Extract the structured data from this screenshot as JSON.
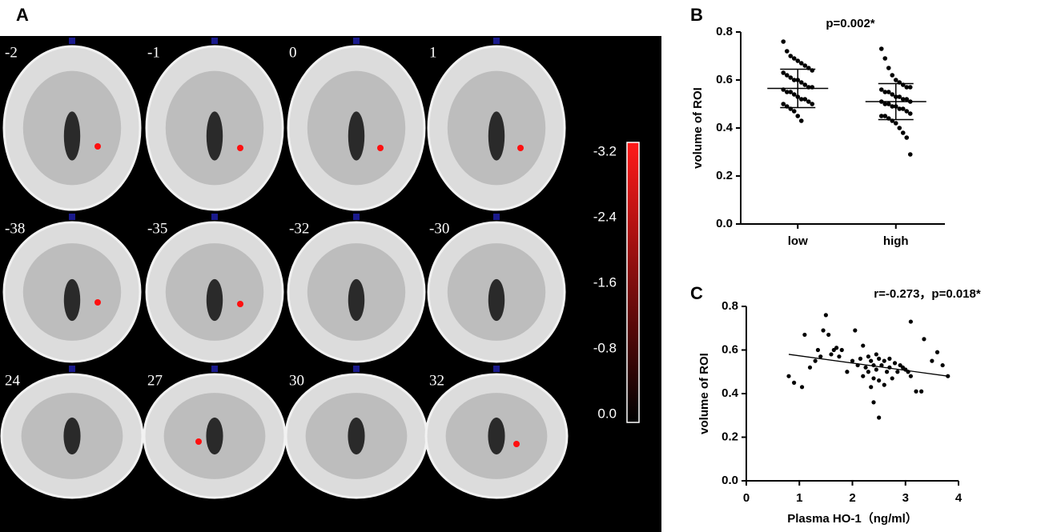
{
  "brain_panel": {
    "panel_label": "A",
    "slices": [
      [
        "-2",
        "-1",
        "0",
        "1"
      ],
      [
        "-38",
        "-35",
        "-32",
        "-30"
      ],
      [
        "24",
        "27",
        "30",
        "32"
      ]
    ],
    "colorbar": {
      "lim": [
        -3.2,
        0
      ],
      "ticks": [
        -3.2,
        -2.4,
        -1.6,
        -0.8,
        {
          "value": 0,
          "label": "0.0"
        }
      ]
    }
  },
  "chart_data": [
    {
      "type": "strip",
      "panel_label": "B",
      "annotation": "p=0.002*",
      "ylabel": "volume of ROI",
      "categories": [
        "low",
        "high"
      ],
      "color": "#000000",
      "values": [
        [
          0.76,
          0.72,
          0.7,
          0.69,
          0.68,
          0.67,
          0.66,
          0.65,
          0.64,
          0.63,
          0.62,
          0.61,
          0.6,
          0.6,
          0.59,
          0.58,
          0.57,
          0.57,
          0.56,
          0.55,
          0.55,
          0.54,
          0.53,
          0.52,
          0.52,
          0.51,
          0.5,
          0.5,
          0.49,
          0.48,
          0.47,
          0.45,
          0.43
        ],
        [
          0.73,
          0.69,
          0.65,
          0.62,
          0.6,
          0.59,
          0.58,
          0.57,
          0.57,
          0.56,
          0.55,
          0.55,
          0.54,
          0.53,
          0.53,
          0.52,
          0.52,
          0.51,
          0.51,
          0.5,
          0.5,
          0.49,
          0.49,
          0.48,
          0.48,
          0.47,
          0.46,
          0.45,
          0.45,
          0.44,
          0.43,
          0.42,
          0.4,
          0.38,
          0.36,
          0.29
        ]
      ],
      "summary": [
        {
          "mean": 0.565,
          "lower": 0.485,
          "upper": 0.645
        },
        {
          "mean": 0.51,
          "lower": 0.435,
          "upper": 0.585
        }
      ],
      "ylim": [
        0,
        0.8
      ],
      "yticks": [
        {
          "value": 0,
          "label": "0.0"
        },
        0.2,
        0.4,
        0.6,
        0.8
      ]
    },
    {
      "type": "scatter",
      "panel_label": "C",
      "annotation": "r=-0.273，p=0.018*",
      "xlabel": "Plasma HO-1（ng/ml）",
      "ylabel": "volume of ROI",
      "color": "#000000",
      "x": [
        0.8,
        0.9,
        1.05,
        1.1,
        1.2,
        1.3,
        1.35,
        1.4,
        1.45,
        1.5,
        1.55,
        1.6,
        1.65,
        1.7,
        1.75,
        1.8,
        1.9,
        2.0,
        2.05,
        2.1,
        2.2,
        2.2,
        2.25,
        2.3,
        2.3,
        2.35,
        2.4,
        2.4,
        2.45,
        2.45,
        2.5,
        2.5,
        2.5,
        2.55,
        2.6,
        2.6,
        2.65,
        2.7,
        2.7,
        2.75,
        2.8,
        2.85,
        2.9,
        2.95,
        3.0,
        3.05,
        3.1,
        3.1,
        3.2,
        3.3,
        3.35,
        3.5,
        3.6,
        3.7,
        3.8,
        2.4,
        2.35,
        2.15
      ],
      "y": [
        0.48,
        0.45,
        0.43,
        0.67,
        0.52,
        0.55,
        0.6,
        0.57,
        0.69,
        0.76,
        0.67,
        0.58,
        0.6,
        0.61,
        0.57,
        0.6,
        0.5,
        0.55,
        0.69,
        0.53,
        0.62,
        0.48,
        0.52,
        0.57,
        0.5,
        0.55,
        0.53,
        0.47,
        0.58,
        0.51,
        0.56,
        0.46,
        0.29,
        0.53,
        0.55,
        0.44,
        0.5,
        0.56,
        0.52,
        0.47,
        0.54,
        0.5,
        0.53,
        0.52,
        0.51,
        0.5,
        0.73,
        0.48,
        0.41,
        0.41,
        0.65,
        0.55,
        0.59,
        0.53,
        0.48,
        0.36,
        0.43,
        0.56
      ],
      "trendline": {
        "x": [
          0.8,
          3.8
        ],
        "y": [
          0.58,
          0.48
        ]
      },
      "xlim": [
        0,
        4
      ],
      "xticks": [
        0,
        1,
        2,
        3,
        4
      ],
      "ylim": [
        0,
        0.8
      ],
      "yticks": [
        {
          "value": 0,
          "label": "0.0"
        },
        0.2,
        0.4,
        0.6,
        0.8
      ]
    }
  ]
}
